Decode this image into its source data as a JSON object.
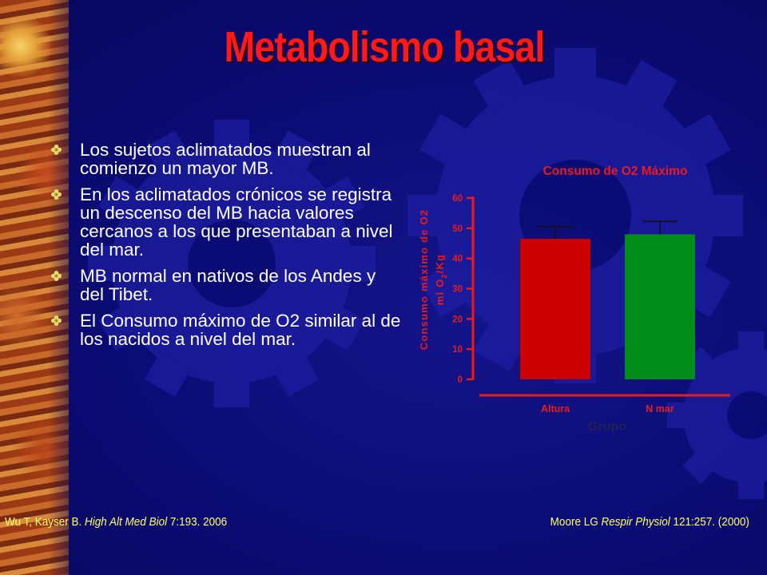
{
  "slide": {
    "title": "Metabolismo basal",
    "bullets": [
      "Los sujetos aclimatados muestran al comienzo un mayor MB.",
      "En los aclimatados crónicos se registra un descenso del MB hacia valores cercanos a los que presentaban a nivel del mar.",
      "MB normal en nativos de los Andes y del Tibet.",
      "El Consumo máximo de O2 similar al de los nacidos a nivel del mar."
    ],
    "citations": {
      "left": {
        "authors": "Wu T, Kayser B. ",
        "journal": "High Alt Med Biol",
        "ref": " 7:193. 2006"
      },
      "right": {
        "authors": "Moore LG ",
        "journal": "Respir Physiol",
        "ref": " 121:257. (2000)"
      }
    }
  },
  "colors": {
    "background": "#0b0b74",
    "title": "#ff1a1a",
    "bullet_text": "#ffffff",
    "citation": "#ffff66",
    "chart_text": "#e81c1c",
    "bar_altura": "#cc0000",
    "bar_nmar": "#008c1a"
  },
  "icons": {
    "bullet": "flower-bullet-icon",
    "background": "gear-icon"
  },
  "chart_data": {
    "type": "bar",
    "title": "Consumo de O2 Máximo",
    "xlabel": "Grupo",
    "ylabel_line1": "Consumo máximo de O2",
    "ylabel_line2_prefix": "ml O",
    "ylabel_line2_sub": "2",
    "ylabel_line2_suffix": "/Kg",
    "categories": [
      "Altura",
      "N mar"
    ],
    "values": [
      46.5,
      48
    ],
    "error": [
      4,
      4.3
    ],
    "ylim": [
      0,
      60
    ],
    "yticks": [
      0,
      10,
      20,
      30,
      40,
      50,
      60
    ],
    "grid": false
  }
}
